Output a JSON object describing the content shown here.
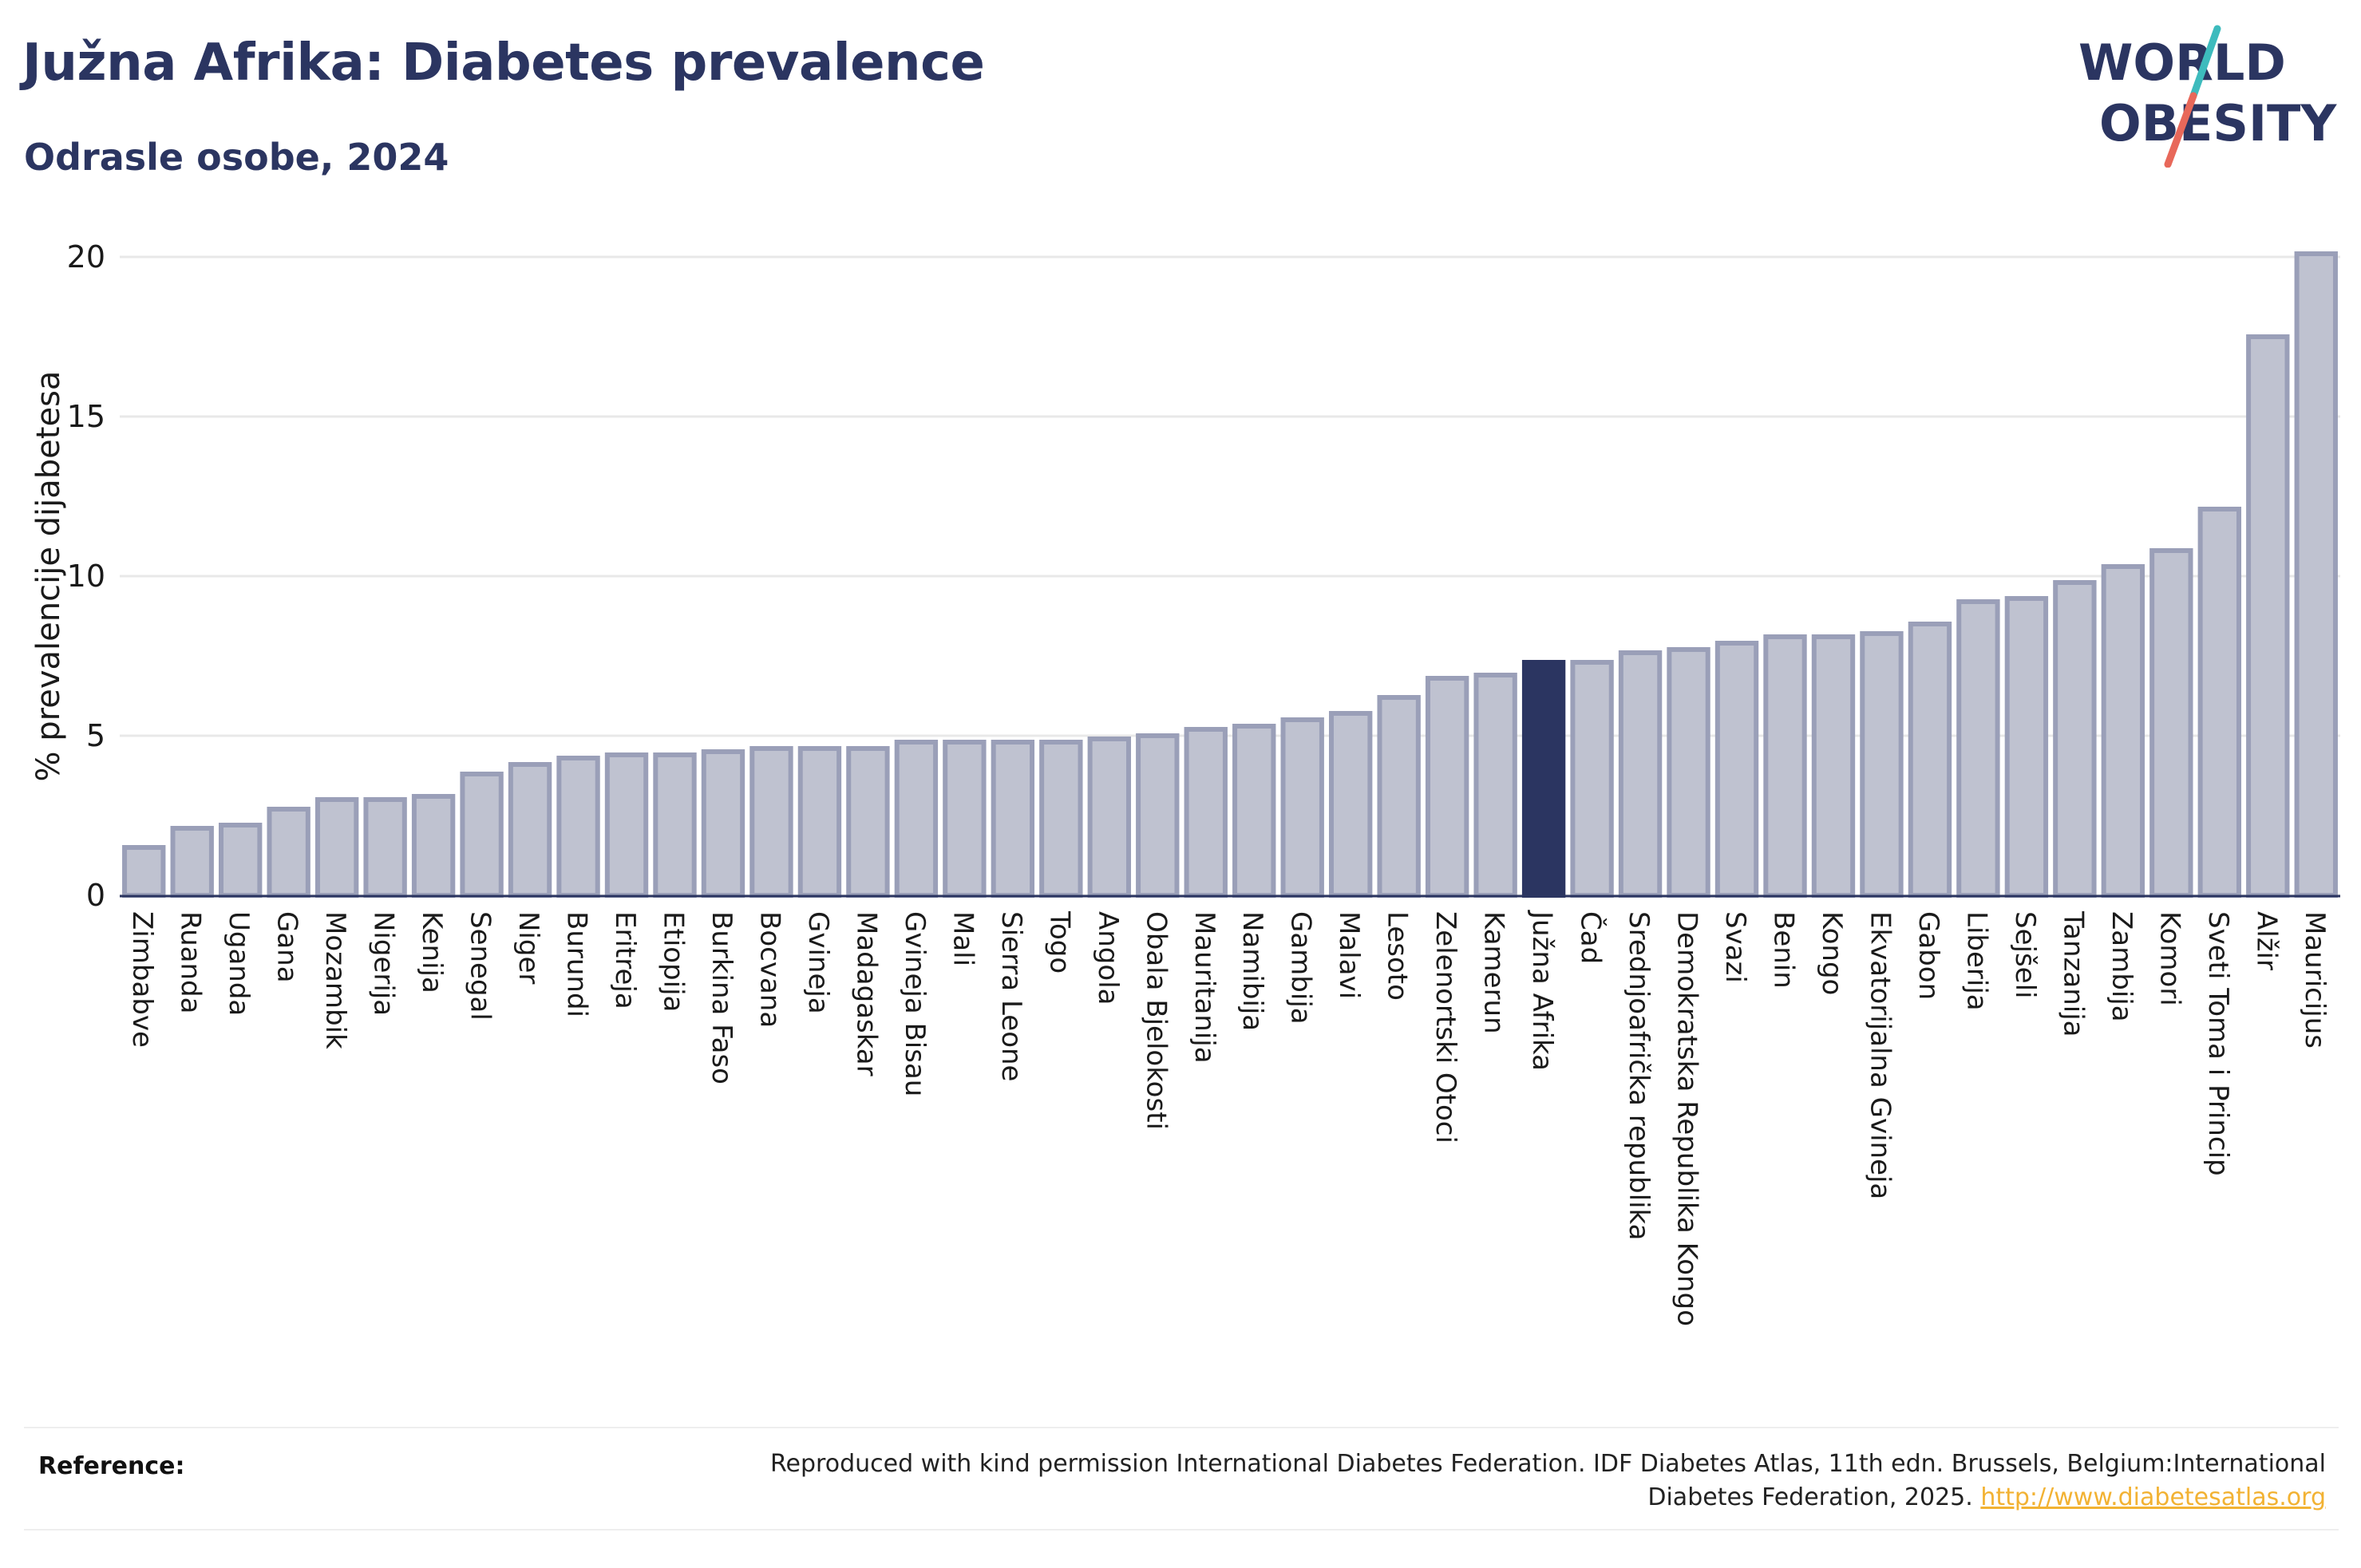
{
  "header": {
    "title": "Južna Afrika: Diabetes prevalence",
    "subtitle": "Odrasle osobe, 2024"
  },
  "logo": {
    "line1": "WORLD",
    "line2": "OBESITY",
    "colors": {
      "text": "#2b3561",
      "slash_teal": "#3dbbbd",
      "slash_coral": "#e8685a"
    }
  },
  "reference": {
    "label": "Reference:",
    "text": "Reproduced with kind permission International Diabetes Federation. IDF Diabetes Atlas, 11th edn. Brussels, Belgium:International Diabetes Federation, 2025.",
    "link": "http://www.diabetesatlas.org"
  },
  "colors": {
    "bar": "#bfc2d0",
    "bar_stroke": "#9a9fb8",
    "highlight": "#2b3561",
    "grid": "#e8e8e8",
    "axis": "#2b3561"
  },
  "chart_data": {
    "type": "bar",
    "title": "Južna Afrika: Diabetes prevalence",
    "subtitle": "Odrasle osobe, 2024",
    "xlabel": "",
    "ylabel": "% prevalencije dijabetesa",
    "ylim": [
      0,
      20
    ],
    "yticks": [
      0,
      5,
      10,
      15,
      20
    ],
    "grid": true,
    "highlight": "Južna Afrika",
    "categories": [
      "Zimbabve",
      "Ruanda",
      "Uganda",
      "Gana",
      "Mozambik",
      "Nigerija",
      "Kenija",
      "Senegal",
      "Niger",
      "Burundi",
      "Eritreja",
      "Etiopija",
      "Burkina Faso",
      "Bocvana",
      "Gvineja",
      "Madagaskar",
      "Gvineja Bisau",
      "Mali",
      "Sierra Leone",
      "Togo",
      "Angola",
      "Obala Bjelokosti",
      "Mauritanija",
      "Namibija",
      "Gambija",
      "Malavi",
      "Lesoto",
      "Zelenortski Otoci",
      "Kamerun",
      "Južna Afrika",
      "Čad",
      "Srednjoafrička republika",
      "Demokratska Republika Kongo",
      "Svazi",
      "Benin",
      "Kongo",
      "Ekvatorijalna Gvineja",
      "Gabon",
      "Liberija",
      "Sejšeli",
      "Tanzanija",
      "Zambija",
      "Komori",
      "Sveti Toma i Princip",
      "Alžir",
      "Mauricijus"
    ],
    "values": [
      1.5,
      2.1,
      2.2,
      2.7,
      3.0,
      3.0,
      3.1,
      3.8,
      4.1,
      4.3,
      4.4,
      4.4,
      4.5,
      4.6,
      4.6,
      4.6,
      4.8,
      4.8,
      4.8,
      4.8,
      4.9,
      5.0,
      5.2,
      5.3,
      5.5,
      5.7,
      6.2,
      6.8,
      6.9,
      7.3,
      7.3,
      7.6,
      7.7,
      7.9,
      8.1,
      8.1,
      8.2,
      8.5,
      9.2,
      9.3,
      9.8,
      10.3,
      10.8,
      12.1,
      17.5,
      20.1
    ]
  }
}
